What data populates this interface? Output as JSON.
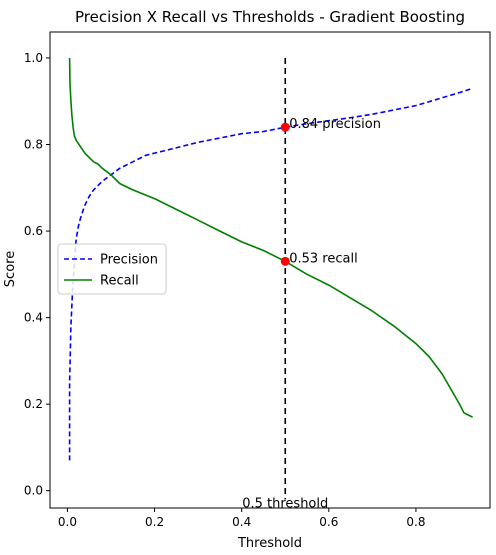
{
  "chart_data": {
    "type": "line",
    "title": "Precision X Recall vs Thresholds - Gradient Boosting",
    "xlabel": "Threshold",
    "ylabel": "Score",
    "xlim": [
      -0.04,
      0.97
    ],
    "ylim": [
      -0.04,
      1.06
    ],
    "xticks": [
      0.0,
      0.2,
      0.4,
      0.6,
      0.8
    ],
    "xtick_labels": [
      "0.0",
      "0.2",
      "0.4",
      "0.6",
      "0.8"
    ],
    "yticks": [
      0.0,
      0.2,
      0.4,
      0.6,
      0.8,
      1.0
    ],
    "ytick_labels": [
      "0.0",
      "0.2",
      "0.4",
      "0.6",
      "0.8",
      "1.0"
    ],
    "grid": false,
    "legend_position": "center-left",
    "series": [
      {
        "name": "Precision",
        "style": "dashed",
        "color": "#0000ff",
        "x": [
          0.005,
          0.005,
          0.008,
          0.012,
          0.016,
          0.02,
          0.025,
          0.03,
          0.04,
          0.05,
          0.06,
          0.07,
          0.08,
          0.1,
          0.12,
          0.15,
          0.18,
          0.22,
          0.26,
          0.3,
          0.35,
          0.4,
          0.45,
          0.5,
          0.55,
          0.6,
          0.65,
          0.7,
          0.75,
          0.8,
          0.85,
          0.9,
          0.93
        ],
        "y": [
          0.07,
          0.25,
          0.38,
          0.47,
          0.53,
          0.58,
          0.61,
          0.63,
          0.66,
          0.68,
          0.695,
          0.705,
          0.715,
          0.73,
          0.745,
          0.76,
          0.775,
          0.785,
          0.795,
          0.805,
          0.815,
          0.825,
          0.83,
          0.84,
          0.848,
          0.855,
          0.862,
          0.87,
          0.88,
          0.89,
          0.905,
          0.92,
          0.93
        ]
      },
      {
        "name": "Recall",
        "style": "solid",
        "color": "#008000",
        "x": [
          0.005,
          0.006,
          0.008,
          0.01,
          0.013,
          0.016,
          0.02,
          0.03,
          0.04,
          0.05,
          0.06,
          0.07,
          0.08,
          0.1,
          0.12,
          0.15,
          0.2,
          0.25,
          0.3,
          0.35,
          0.4,
          0.45,
          0.5,
          0.55,
          0.6,
          0.65,
          0.7,
          0.75,
          0.8,
          0.83,
          0.86,
          0.88,
          0.9,
          0.91,
          0.92,
          0.93
        ],
        "y": [
          1.0,
          0.94,
          0.9,
          0.87,
          0.84,
          0.82,
          0.81,
          0.795,
          0.78,
          0.77,
          0.76,
          0.755,
          0.745,
          0.73,
          0.71,
          0.695,
          0.675,
          0.65,
          0.625,
          0.6,
          0.575,
          0.555,
          0.53,
          0.5,
          0.475,
          0.445,
          0.415,
          0.38,
          0.34,
          0.31,
          0.27,
          0.235,
          0.2,
          0.18,
          0.175,
          0.17
        ]
      }
    ],
    "threshold_line": {
      "x": 0.5,
      "style": "dashed",
      "color": "#000000"
    },
    "markers": [
      {
        "x": 0.5,
        "y": 0.84,
        "color": "#ff0000"
      },
      {
        "x": 0.5,
        "y": 0.53,
        "color": "#ff0000"
      }
    ],
    "annotations": [
      {
        "text": "0.84 precision",
        "x": 0.5,
        "y": 0.84
      },
      {
        "text": "0.53 recall",
        "x": 0.5,
        "y": 0.53
      },
      {
        "text": "0.5 threshold",
        "x": 0.5,
        "y": -0.03
      }
    ]
  }
}
